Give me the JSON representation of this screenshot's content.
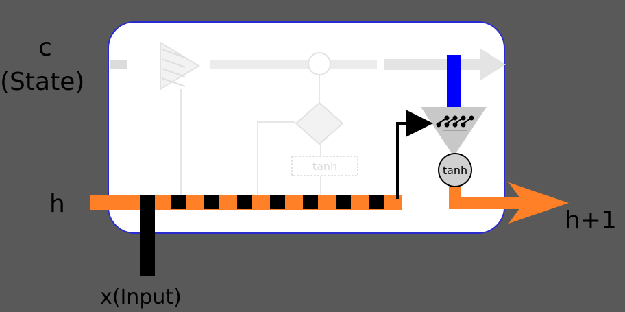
{
  "labels": {
    "c": "c",
    "state": "(State)",
    "h": "h",
    "h_next": "h+1",
    "input": "x(Input)",
    "tanh_out": "tanh",
    "tanh_faded": "tanh"
  },
  "colors": {
    "background": "#595959",
    "cell_fill": "#ffffff",
    "cell_border": "#2a2ad4",
    "hidden": "#ff8026",
    "input": "#000000",
    "state_highlight": "#0000ff",
    "gate": "#c8c8c8",
    "faded": "#ececec"
  }
}
